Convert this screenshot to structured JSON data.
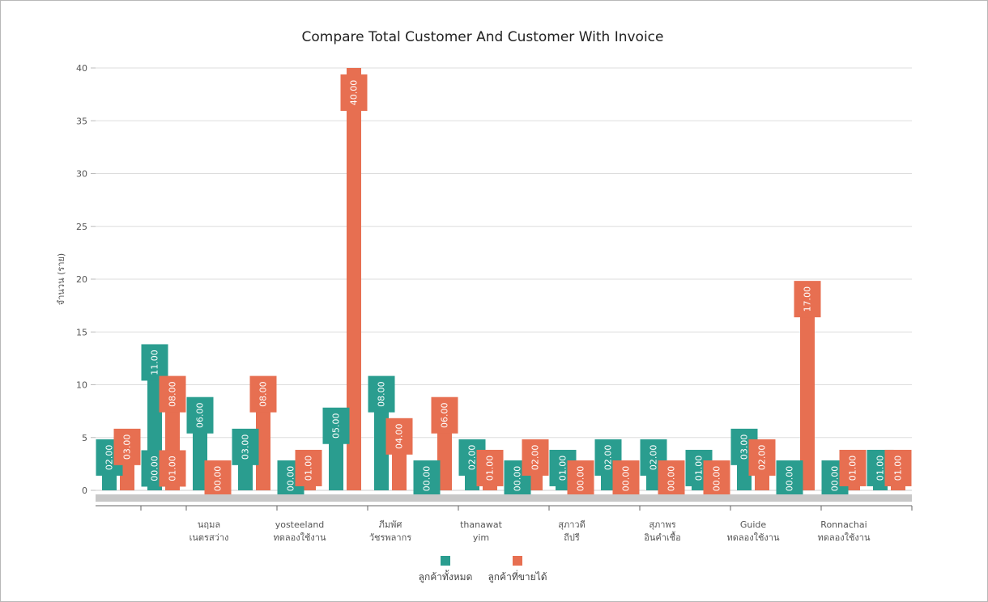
{
  "chart_data": {
    "type": "bar",
    "title": "Compare Total Customer And Customer With Invoice",
    "xlabel": "",
    "ylabel": "จำนวน (ราย)",
    "ylim": [
      0,
      40
    ],
    "yticks": [
      0,
      5,
      10,
      15,
      20,
      25,
      30,
      35,
      40
    ],
    "grid": true,
    "legend_position": "bottom",
    "colors": {
      "total": "#2a9d8f",
      "invoice": "#e76f51",
      "scrollbar": "#c8c8c8"
    },
    "categories": [
      "",
      "",
      "นฤมล เนตรสว่าง",
      "",
      "yosteeland ทดลองใช้งาน",
      "",
      "ภีมพัศ วัชรพลากร",
      "",
      "thanawat yim",
      "",
      "สุภาวดี ถีปรี",
      "",
      "สุภาพร อินคำเชื้อ",
      "",
      "Guide ทดลองใช้งาน",
      "",
      "Ronnachai ทดลองใช้งาน",
      ""
    ],
    "category_label_lines": [
      [],
      [],
      [
        "นฤมล",
        "เนตรสว่าง"
      ],
      [],
      [
        "yosteeland",
        "ทดลองใช้งาน"
      ],
      [],
      [
        "ภีมพัศ",
        "วัชรพลากร"
      ],
      [],
      [
        "thanawat",
        "yim"
      ],
      [],
      [
        "สุภาวดี",
        "ถีปรี"
      ],
      [],
      [
        "สุภาพร",
        "อินคำเชื้อ"
      ],
      [],
      [
        "Guide",
        "ทดลองใช้งาน"
      ],
      [],
      [
        "Ronnachai",
        "ทดลองใช้งาน"
      ],
      []
    ],
    "series": [
      {
        "name": "ลูกค้าทั้งหมด",
        "color": "#2a9d8f",
        "values": [
          2,
          11,
          6,
          3,
          0,
          5,
          8,
          0,
          2,
          0,
          1,
          2,
          2,
          1,
          3,
          0,
          0,
          1
        ],
        "labels": [
          "02.00",
          "11.00",
          "06.00",
          "03.00",
          "00.00",
          "05.00",
          "08.00",
          "00.00",
          "02.00",
          "00.00",
          "01.00",
          "02.00",
          "02.00",
          "01.00",
          "03.00",
          "00.00",
          "00.00",
          "01.00"
        ]
      },
      {
        "name": "ลูกค้าที่ขายได้",
        "color": "#e76f51",
        "values": [
          3,
          8,
          0,
          8,
          1,
          40,
          4,
          6,
          1,
          2,
          0,
          0,
          0,
          0,
          2,
          17,
          1,
          1
        ],
        "labels": [
          "03.00",
          "08.00",
          "00.00",
          "08.00",
          "01.00",
          "40.00",
          "04.00",
          "06.00",
          "01.00",
          "02.00",
          "00.00",
          "00.00",
          "00.00",
          "00.00",
          "02.00",
          "17.00",
          "01.00",
          "01.00"
        ]
      }
    ],
    "extra_data_labels": [
      {
        "series": 0,
        "category": 1,
        "label": "00.00"
      },
      {
        "series": 1,
        "category": 1,
        "label": "01.00"
      }
    ]
  }
}
